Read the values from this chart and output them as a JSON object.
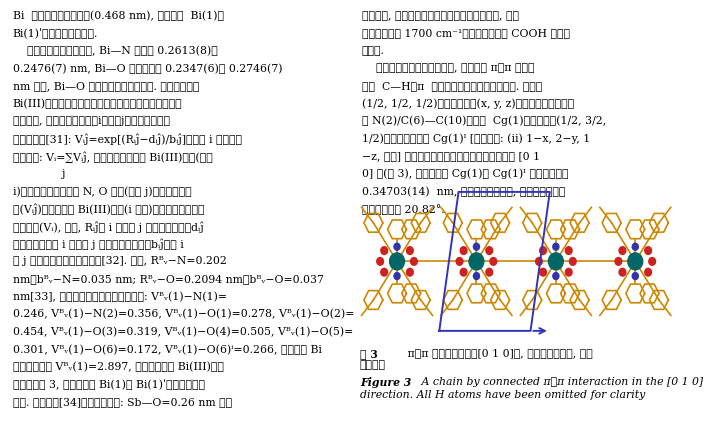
{
  "left_text": [
    "Bi  原子的范德华半径和(0.468 nm), 表明原子  Bi(1)和",
    "Bi(1)ʹ之间存在相互作用.",
    "    在配合物的晶体结构中, Bi—N 键距为 0.2613(8)和",
    "0.2476(7) nm, Bi—O 键的距离在 0.2347(6)到 0.2746(7)",
    "nm 之间, Bi—O 键距有一个较大的范围. 为了对围绕着",
    "Bi(III)原子周围的配位环境及配位键的强弱有一个进一",
    "步的认识, 利用两个相邻原子i与原子j之间成键的键价",
    "数计算公式[31]: Vᵢĵ=exp[(Rᵢĵ−dᵢĵ)/bᵢĵ]和围绕 i 原子总化",
    "合价公式: Vᵢ=∑Vᵢĵ, 可以计算配合物中 Bi(III)原子(原子",
    "              j",
    "i)与其周围每个配位的 N, O 原子(原子 j)间的配位键价",
    "数(Vᵢĵ)以及围绕者 Bi(III)原子(i 原子)的各个配位键的键",
    "价数总和(Vᵢ), 式中, Rᵢĵ为 i 原子和 j 原子单键键长、dᵢĵ",
    "为晶体学数据中 i 原子和 j 原子之间的键距、bᵢĵ是与 i",
    "和 j 两个原子性质相关的参数[32]. 此处, Rᴮᵥ−N=0.202",
    "nm、bᴮᵥ−N=0.035 nm; Rᴮᵥ−O=0.2094 nm、bᴮᵥ−O=0.037",
    "nm[33], 对标题配合物的计算结果如下: Vᴮᵥ(1)−N(1)=",
    "0.246, Vᴮᵥ(1)−N(2)=0.356, Vᴮᵥ(1)−O(1)=0.278, Vᴮᵥ(1)−O(2)=",
    "0.454, Vᴮᵥ(1)−O(3)=0.319, Vᴮᵥ(1)−O(4)=0.505, Vᴮᵥ(1)−O(5)=",
    "0.301, Vᴮᵥ(1)−O(6)=0.172, Vᴮᵥ(1)−O(6)ⁱ=0.266, 九配位的 Bi",
    "原子总键价数 Vᴮᵥ(1)=2.897, 这个值略小于 Bi(III)离子",
    "的化合价数 3, 也表明原子 Bi(1)和 Bi(1)ʹ之间存在相互",
    "作用. 按照文献[34]中提出的建议: Sb—O=0.26 nm 作为"
  ],
  "right_text_top": [
    "被质子化, 这与配合物的红外图谱数据是一致的, 因为",
    "在红外图谱中 1700 cm⁻¹附近没有观察到 COOH 的特征",
    "吸收峰.",
    "    在标题配合物的晶体结构中, 短距离的 π⋯π 相互作",
    "用和  C—H⋯π  氢键连接分子形成二维的结构. 中心在",
    "(1/2, 1/2, 1/2)的分子坐标在(x, y, z)的配体邻菲罗琳上的",
    "环 N(2)/C(6)—C(10)的质心  Cg(1)对者中心在(1/2, 3/2,",
    "1/2)的分子上环质心 Cg(1)ᴵ [对称坐标: (ii) 1−x, 2−y, 1",
    "−z, 下同] 通过连续倒反和平移操作连结分子形成 [0 1",
    "0] 链(图 3), 其中环质心 Cg(1)与 Cg(1)ᴵ 之间的距离是",
    "0.34703(14)  nm, 两个环面是平行的, 质心连线与环面",
    "法线的夹角是 20.82°."
  ],
  "fig_caption_cn_prefix": "图 3",
  "fig_caption_cn_body": "   π⋯π 相互作用连结的[0 1 0]链, 为了图形的清楚, 省掉",
  "fig_caption_cn_line2": "了氢原子",
  "fig_caption_en_bold": "Figure 3",
  "fig_caption_en_body": "   A chain by connected π⋯π interaction in the [0 1 0]",
  "fig_caption_en_line2": "direction. All H atoms have been omitted for clarity",
  "bg_color": "#ffffff",
  "text_color": "#000000",
  "font_size_main": 7.8,
  "col_split": 0.497
}
